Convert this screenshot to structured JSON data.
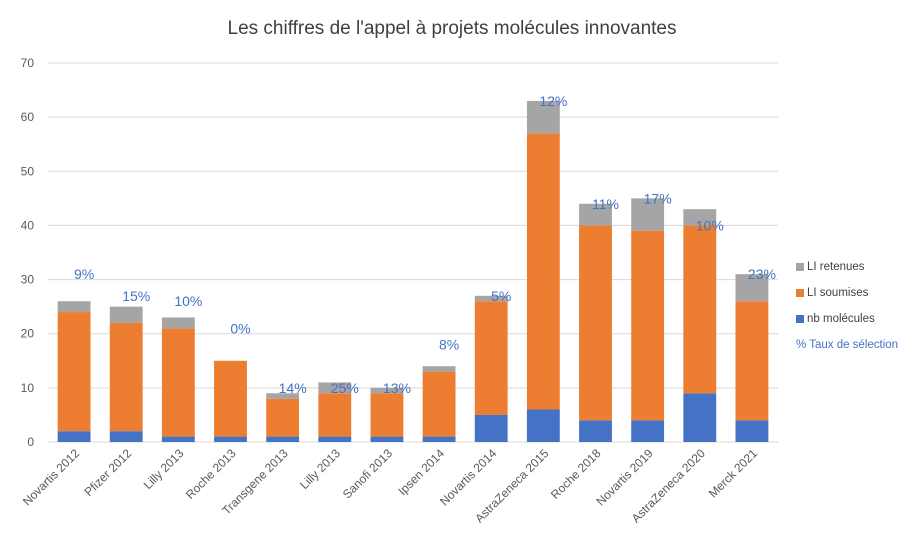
{
  "chart_data": {
    "type": "bar",
    "stacked": true,
    "title": "Les chiffres de l'appel à projets molécules innovantes",
    "xlabel": "",
    "ylabel": "",
    "ylim": [
      0,
      70
    ],
    "yticks": [
      0,
      10,
      20,
      30,
      40,
      50,
      60,
      70
    ],
    "grid": true,
    "legend_position": "right",
    "categories": [
      "Novartis 2012",
      "Pfizer 2012",
      "Lilly 2013",
      "Roche 2013",
      "Transgene 2013",
      "Lilly 2013",
      "Sanofi 2013",
      "Ipsen 2014",
      "Novartis 2014",
      "AstraZeneca 2015",
      "Roche 2018",
      "Novartis 2019",
      "AstraZeneca 2020",
      "Merck 2021"
    ],
    "series": [
      {
        "name": "nb molécules",
        "color": "#4472c4",
        "values": [
          2,
          2,
          1,
          1,
          1,
          1,
          1,
          1,
          5,
          6,
          4,
          4,
          9,
          4
        ]
      },
      {
        "name": "LI soumises",
        "color": "#ed7d31",
        "values": [
          22,
          20,
          20,
          14,
          7,
          8,
          8,
          12,
          21,
          51,
          36,
          35,
          31,
          22
        ]
      },
      {
        "name": "LI retenues",
        "color": "#a5a5a5",
        "values": [
          2,
          3,
          2,
          0,
          1,
          2,
          1,
          1,
          1,
          6,
          4,
          6,
          3,
          5
        ]
      }
    ],
    "annotations": {
      "name": "% Taux de sélection",
      "color": "#4472c4",
      "labels": [
        "9%",
        "15%",
        "10%",
        "0%",
        "14%",
        "25%",
        "13%",
        "8%",
        "5%",
        "12%",
        "11%",
        "17%",
        "10%",
        "23%"
      ],
      "anchor_values": [
        31,
        27,
        26,
        21,
        10,
        10,
        10,
        18,
        27,
        63,
        44,
        45,
        40,
        31
      ]
    },
    "legend": [
      {
        "label": "LI retenues",
        "color": "#a5a5a5"
      },
      {
        "label": "LI soumises",
        "color": "#ed7d31"
      },
      {
        "label": "nb molécules",
        "color": "#4472c4"
      },
      {
        "label": "% Taux de sélection",
        "color": "#4472c4"
      }
    ]
  }
}
